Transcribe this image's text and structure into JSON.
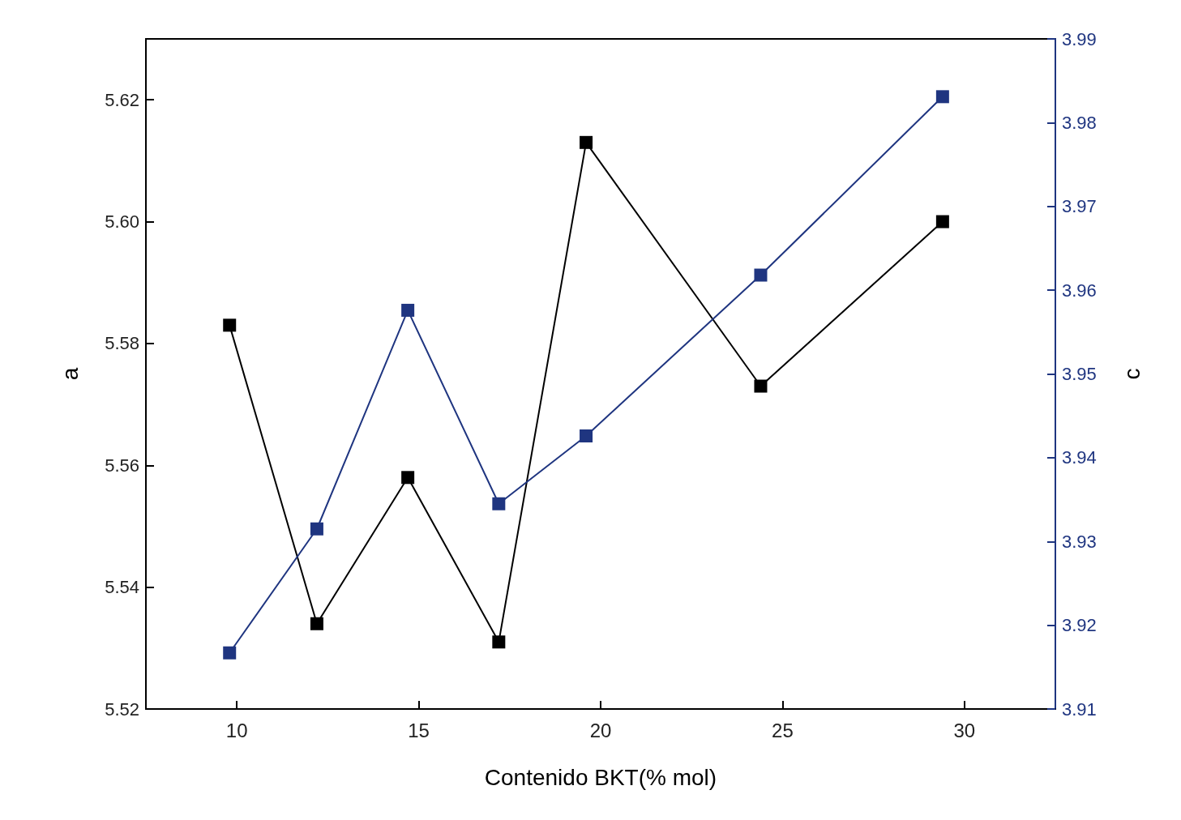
{
  "chart_data": {
    "type": "line",
    "xlabel": "Contenido BKT(% mol)",
    "ylabel": "a",
    "y2label": "c",
    "x": [
      9.8,
      12.2,
      14.7,
      17.2,
      19.6,
      24.4,
      29.4
    ],
    "series": [
      {
        "color": "#000000",
        "values": [
          5.583,
          5.534,
          5.558,
          5.531,
          5.613,
          5.573,
          5.6
        ]
      },
      {
        "color": "#1f3580",
        "axis": "y2",
        "values": [
          3.9167,
          3.9315,
          3.9576,
          3.9345,
          3.9426,
          3.9618,
          3.9831
        ]
      }
    ],
    "xlim": [
      7.5,
      32.5
    ],
    "xticks": [
      10,
      15,
      20,
      25,
      30
    ],
    "ylim": [
      5.52,
      5.63
    ],
    "yticks": [
      5.52,
      5.54,
      5.56,
      5.58,
      {
        "value": 5.6,
        "label": "5.60"
      },
      5.62
    ],
    "y2lim": [
      3.91,
      3.99
    ],
    "y2ticks": [
      3.91,
      3.92,
      3.93,
      3.94,
      3.95,
      3.96,
      3.97,
      3.98,
      3.99
    ],
    "marker": "square",
    "line_style": "solid"
  }
}
